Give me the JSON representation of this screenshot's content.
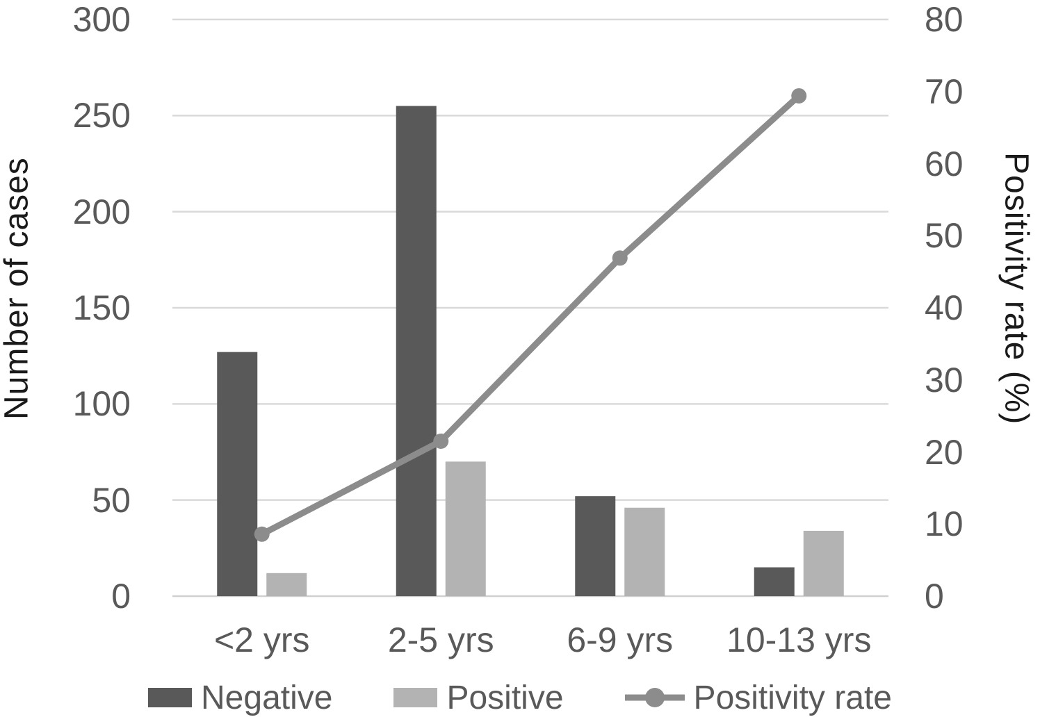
{
  "chart_data": {
    "type": "bar",
    "subtype": "combo-bar-line-dual-axis",
    "categories": [
      "<2 yrs",
      "2-5 yrs",
      "6-9 yrs",
      "10-13 yrs"
    ],
    "series": [
      {
        "name": "Negative",
        "type": "bar",
        "axis": "left",
        "values": [
          127,
          255,
          52,
          15
        ],
        "color": "#595959"
      },
      {
        "name": "Positive",
        "type": "bar",
        "axis": "left",
        "values": [
          12,
          70,
          46,
          34
        ],
        "color": "#b3b3b3"
      },
      {
        "name": "Positivity rate",
        "type": "line",
        "axis": "right",
        "values": [
          8.6,
          21.5,
          46.9,
          69.4
        ],
        "color": "#8c8c8c"
      }
    ],
    "left_axis": {
      "label": "Number of cases",
      "min": 0,
      "max": 300,
      "step": 50,
      "ticks": [
        "0",
        "50",
        "100",
        "150",
        "200",
        "250",
        "300"
      ]
    },
    "right_axis": {
      "label": "Positivity rate (%)",
      "min": 0,
      "max": 80,
      "step": 10,
      "ticks": [
        "0",
        "10",
        "20",
        "30",
        "40",
        "50",
        "60",
        "70",
        "80"
      ]
    },
    "grid": true,
    "legend_position": "bottom"
  },
  "colors": {
    "background": "#ffffff",
    "gridline": "#d9d9d9",
    "baseline": "#cfcfcf",
    "tick_text": "#595959",
    "axis_title_text": "#1a1a1a",
    "negative_bar": "#595959",
    "positive_bar": "#b3b3b3",
    "line": "#8c8c8c"
  },
  "legend": {
    "items": [
      {
        "label": "Negative",
        "swatch": "dark-bar"
      },
      {
        "label": "Positive",
        "swatch": "light-bar"
      },
      {
        "label": "Positivity rate",
        "swatch": "line-marker"
      }
    ]
  }
}
